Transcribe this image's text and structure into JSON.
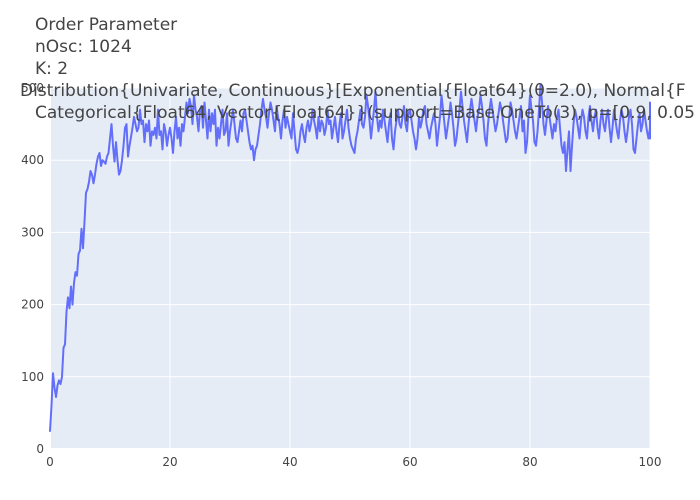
{
  "colors": {
    "plot_bg": "#e5ecf6",
    "paper_bg": "#ffffff",
    "grid": "#ffffff",
    "text": "#444444",
    "series": "#636efa"
  },
  "chart_data": {
    "type": "line",
    "title_lines": [
      "Order Parameter",
      "nOsc: 1024",
      "K: 2",
      "Distribution{Univariate, Continuous}[Exponential{Float64}(θ=2.0), Normal{F",
      "Categorical{Float64, Vector{Float64}}(support=Base.OneTo(3), p=[0.9, 0.05"
    ],
    "xlabel": "",
    "ylabel": "",
    "xlim": [
      0,
      100
    ],
    "ylim": [
      0,
      500
    ],
    "x_ticks": [
      0,
      20,
      40,
      60,
      80,
      100
    ],
    "y_ticks": [
      0,
      100,
      200,
      300,
      400,
      500
    ],
    "grid": true,
    "legend": "none",
    "series": [
      {
        "x_start": 0,
        "x_step": 0.25,
        "values": [
          25,
          60,
          105,
          85,
          72,
          88,
          95,
          90,
          100,
          140,
          145,
          190,
          210,
          195,
          225,
          200,
          230,
          245,
          240,
          270,
          275,
          305,
          278,
          315,
          355,
          360,
          370,
          385,
          380,
          368,
          380,
          395,
          405,
          410,
          392,
          400,
          398,
          395,
          405,
          410,
          430,
          450,
          420,
          398,
          425,
          400,
          380,
          385,
          400,
          420,
          445,
          450,
          405,
          420,
          432,
          445,
          460,
          450,
          440,
          445,
          470,
          450,
          455,
          425,
          450,
          440,
          455,
          420,
          440,
          435,
          445,
          430,
          470,
          435,
          440,
          415,
          450,
          440,
          420,
          435,
          445,
          430,
          410,
          440,
          460,
          430,
          445,
          420,
          450,
          440,
          460,
          480,
          465,
          485,
          475,
          450,
          490,
          470,
          460,
          440,
          470,
          475,
          445,
          480,
          455,
          430,
          470,
          440,
          465,
          450,
          470,
          420,
          445,
          430,
          450,
          470,
          435,
          440,
          465,
          420,
          440,
          455,
          470,
          450,
          430,
          425,
          440,
          455,
          440,
          465,
          470,
          455,
          440,
          425,
          415,
          420,
          400,
          415,
          420,
          435,
          450,
          470,
          485,
          470,
          460,
          445,
          465,
          480,
          470,
          455,
          440,
          475,
          460,
          450,
          430,
          455,
          470,
          445,
          460,
          450,
          440,
          430,
          465,
          440,
          415,
          410,
          420,
          440,
          450,
          435,
          425,
          445,
          455,
          440,
          450,
          470,
          455,
          445,
          430,
          460,
          440,
          455,
          450,
          435,
          445,
          470,
          450,
          455,
          430,
          445,
          460,
          440,
          425,
          450,
          465,
          430,
          440,
          455,
          470,
          445,
          430,
          420,
          415,
          410,
          430,
          440,
          455,
          470,
          450,
          445,
          460,
          490,
          475,
          455,
          430,
          450,
          470,
          495,
          460,
          440,
          455,
          445,
          470,
          455,
          440,
          425,
          450,
          465,
          430,
          415,
          440,
          455,
          470,
          450,
          445,
          460,
          475,
          450,
          440,
          465,
          470,
          455,
          440,
          430,
          415,
          430,
          460,
          445,
          455,
          470,
          475,
          450,
          440,
          430,
          445,
          455,
          465,
          450,
          420,
          440,
          460,
          490,
          470,
          450,
          430,
          445,
          460,
          480,
          465,
          445,
          420,
          430,
          450,
          470,
          495,
          475,
          455,
          440,
          425,
          450,
          470,
          485,
          470,
          455,
          440,
          460,
          470,
          490,
          475,
          455,
          430,
          420,
          450,
          470,
          485,
          470,
          455,
          440,
          450,
          465,
          480,
          470,
          455,
          440,
          425,
          430,
          455,
          480,
          470,
          455,
          440,
          430,
          445,
          460,
          475,
          440,
          455,
          410,
          425,
          460,
          490,
          470,
          455,
          425,
          420,
          440,
          470,
          505,
          480,
          450,
          435,
          455,
          475,
          460,
          445,
          430,
          450,
          440,
          460,
          470,
          445,
          420,
          410,
          425,
          385,
          415,
          440,
          385,
          420,
          450,
          470,
          460,
          445,
          430,
          455,
          470,
          460,
          440,
          430,
          460,
          475,
          455,
          440,
          460,
          470,
          445,
          430,
          455,
          470,
          450,
          440,
          460,
          470,
          445,
          425,
          445,
          470,
          455,
          440,
          430,
          455,
          470,
          460,
          440,
          425,
          440,
          460,
          470,
          450,
          415,
          410,
          430,
          450,
          465,
          440,
          450,
          470,
          455,
          440,
          430,
          445,
          460,
          470,
          455,
          440,
          450,
          460,
          470,
          480,
          470,
          455,
          440,
          430,
          450,
          470,
          455,
          440,
          450,
          465,
          480
        ]
      }
    ]
  }
}
